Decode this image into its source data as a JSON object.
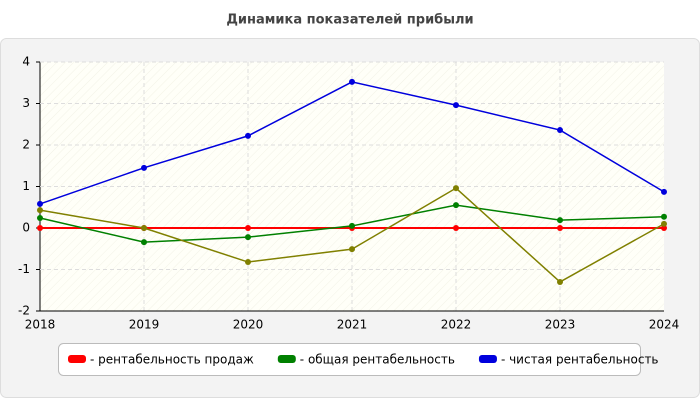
{
  "chart_data": {
    "type": "line",
    "title": "Динамика показателей прибыли",
    "categories": [
      "2018",
      "2019",
      "2020",
      "2021",
      "2022",
      "2023",
      "2024"
    ],
    "series": [
      {
        "name": "- рентабельность продаж",
        "color": "#ff0000",
        "values": [
          0,
          0,
          0,
          0,
          0,
          0,
          0
        ]
      },
      {
        "name": "- общая рентабельность",
        "color": "#008000",
        "values": [
          0.24,
          -0.34,
          -0.22,
          0.05,
          0.55,
          0.19,
          0.27
        ]
      },
      {
        "name": "- чистая рентабельность",
        "color": "#0000dd",
        "values": [
          0.58,
          1.45,
          2.22,
          3.52,
          2.96,
          2.36,
          0.87
        ]
      },
      {
        "color": "#808000",
        "values": [
          0.43,
          0,
          -0.82,
          -0.51,
          0.96,
          -1.3,
          0.1
        ]
      }
    ],
    "ylim": [
      -2,
      4
    ],
    "yticks": [
      -2,
      -1,
      0,
      1,
      2,
      3,
      4
    ],
    "grid": true
  }
}
